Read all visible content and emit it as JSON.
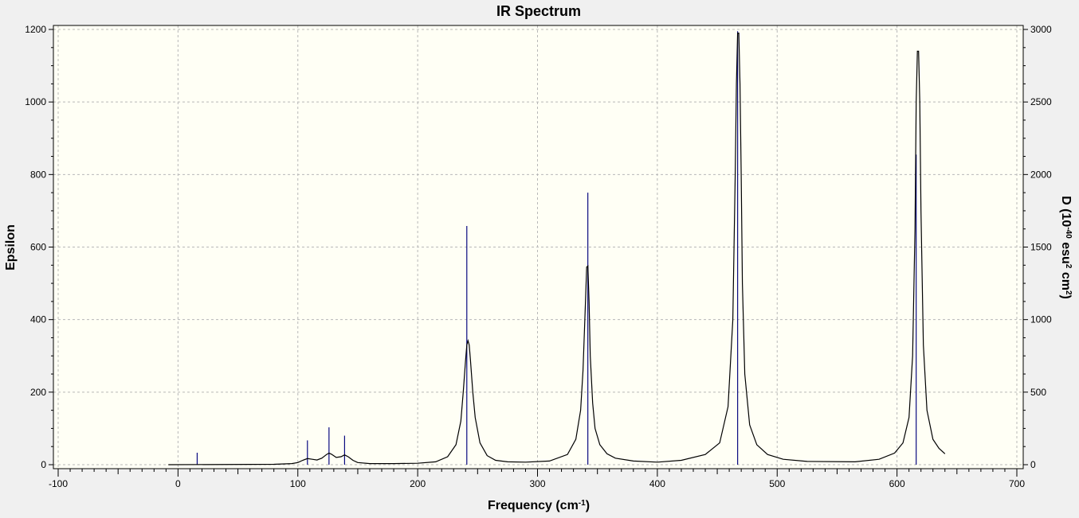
{
  "colors": {
    "window_bg": "#f0f0f0",
    "plot_bg": "#fffff5",
    "curve": "#000000",
    "stick": "#0a0a80",
    "grid": "#b8b8b8"
  },
  "chart_data": {
    "type": "line",
    "title": "IR Spectrum",
    "xlabel": "Frequency",
    "xlabel_unit_base": "cm",
    "xlabel_unit_exp": "-1",
    "ylabel_left": "Epsilon",
    "ylabel_right_parts": {
      "d": "D",
      "base10": "10",
      "exp40": "-40",
      "esu": "esu",
      "exp2a": "2",
      "cm": "cm",
      "exp2b": "2"
    },
    "xlim": [
      -100,
      700
    ],
    "ylim_left": [
      0,
      1200
    ],
    "ylim_right": [
      0,
      3000
    ],
    "x_ticks": [
      -100,
      0,
      100,
      200,
      300,
      400,
      500,
      600,
      700
    ],
    "y_left_ticks": [
      0,
      200,
      400,
      600,
      800,
      1000,
      1200
    ],
    "y_right_ticks": [
      0,
      500,
      1000,
      1500,
      2000,
      2500,
      3000
    ],
    "grid": true,
    "series": [
      {
        "kind": "spectrum-curve",
        "x": [
          -8,
          80,
          95,
          100,
          104,
          108,
          112,
          116,
          120,
          124,
          126,
          128,
          132,
          136,
          139,
          142,
          146,
          150,
          160,
          180,
          200,
          215,
          225,
          232,
          236,
          238,
          240,
          241,
          242,
          243,
          244,
          246,
          248,
          252,
          258,
          265,
          275,
          290,
          310,
          325,
          332,
          336,
          338,
          340,
          341,
          342,
          343,
          344,
          346,
          348,
          352,
          358,
          365,
          380,
          400,
          420,
          440,
          452,
          459,
          463,
          465,
          466,
          467,
          468,
          469,
          470,
          471,
          473,
          477,
          483,
          492,
          505,
          525,
          565,
          585,
          598,
          605,
          610,
          613,
          615,
          616,
          617,
          618,
          619,
          620,
          622,
          625,
          630,
          635,
          640
        ],
        "y": [
          0,
          1,
          3,
          6,
          12,
          17,
          15,
          13,
          18,
          28,
          32,
          29,
          20,
          22,
          27,
          22,
          12,
          6,
          3,
          3,
          4,
          8,
          22,
          55,
          120,
          200,
          290,
          330,
          342,
          330,
          290,
          200,
          130,
          60,
          25,
          12,
          8,
          7,
          10,
          28,
          70,
          150,
          260,
          450,
          545,
          548,
          450,
          300,
          170,
          100,
          55,
          30,
          18,
          10,
          7,
          12,
          28,
          60,
          160,
          400,
          800,
          1050,
          1190,
          1190,
          1050,
          800,
          500,
          250,
          110,
          55,
          28,
          15,
          9,
          8,
          15,
          32,
          60,
          130,
          300,
          650,
          1000,
          1140,
          1140,
          1000,
          700,
          330,
          150,
          70,
          45,
          30
        ]
      }
    ],
    "sticks": {
      "x": [
        16,
        108,
        126,
        139,
        241,
        342,
        467,
        616
      ],
      "y": [
        33,
        67,
        103,
        80,
        658,
        750,
        1195,
        855
      ]
    }
  }
}
